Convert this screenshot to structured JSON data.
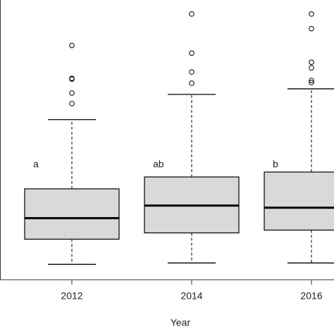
{
  "chart_data": {
    "type": "box",
    "x_label": "Year",
    "categories": [
      "2012",
      "2014",
      "2016"
    ],
    "group_labels": [
      "a",
      "ab",
      "b"
    ],
    "ylim": [
      0,
      100
    ],
    "boxes": [
      {
        "whislo": 5.5,
        "q1": 14.5,
        "med": 22,
        "q3": 32.5,
        "whishi": 57.25,
        "fliers": [
          83.75,
          72,
          71.75,
          66.75,
          63
        ]
      },
      {
        "whislo": 6,
        "q1": 16.75,
        "med": 26.5,
        "q3": 36.75,
        "whishi": 66.25,
        "fliers": [
          95,
          81,
          74.25,
          70.25
        ]
      },
      {
        "whislo": 6,
        "q1": 17.75,
        "med": 25.75,
        "q3": 38.5,
        "whishi": 68.25,
        "fliers": [
          95,
          89.75,
          77.75,
          75.75,
          71.25,
          70.5
        ]
      }
    ],
    "box_color": "#d9d9d9"
  }
}
